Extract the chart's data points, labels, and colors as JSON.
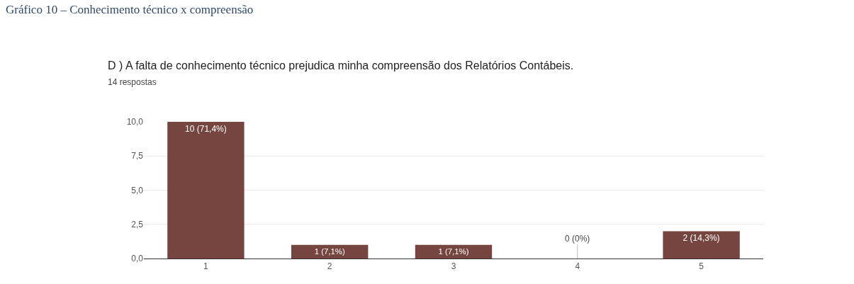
{
  "chart_data": {
    "type": "bar",
    "title": "D ) A falta de conhecimento técnico prejudica minha compreensão dos Relatórios Contábeis.",
    "subtitle": "14 respostas",
    "annotations": [
      "Gráfico 10 – Conhecimento técnico x compreensão"
    ],
    "categories": [
      "1",
      "2",
      "3",
      "4",
      "5"
    ],
    "values": [
      10,
      1,
      1,
      0,
      2
    ],
    "value_labels": [
      "10 (71,4%)",
      "1 (7,1%)",
      "1 (7,1%)",
      "0 (0%)",
      "2 (14,3%)"
    ],
    "color": "#76453f",
    "ylim": [
      0,
      10
    ],
    "yticks": [
      {
        "value": 0,
        "label": "0,0"
      },
      {
        "value": 2.5,
        "label": "2,5"
      },
      {
        "value": 5,
        "label": "5,0"
      },
      {
        "value": 7.5,
        "label": "7,5"
      },
      {
        "value": 10,
        "label": "10,0"
      }
    ],
    "grid": "y",
    "legend": false
  }
}
